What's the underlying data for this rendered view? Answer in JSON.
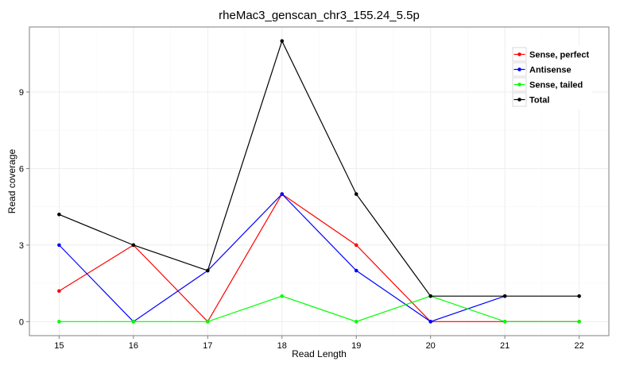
{
  "chart_data": {
    "type": "line",
    "title": "rheMac3_genscan_chr3_155.24_5.5p",
    "xlabel": "Read Length",
    "ylabel": "Read coverage",
    "x": [
      15,
      16,
      17,
      18,
      19,
      20,
      21,
      22
    ],
    "xlim": [
      14.6,
      22.4
    ],
    "ylim": [
      -0.55,
      11.55
    ],
    "yticks": [
      0,
      3,
      6,
      9
    ],
    "grid": true,
    "legend_position": "top-right",
    "series": [
      {
        "name": "Sense, perfect",
        "color": "#ff0000",
        "values": [
          1.2,
          3,
          0,
          5,
          3,
          0,
          0,
          0
        ]
      },
      {
        "name": "Antisense",
        "color": "#0000ff",
        "values": [
          3,
          0,
          2,
          5,
          2,
          0,
          1,
          null
        ]
      },
      {
        "name": "Sense, tailed",
        "color": "#00ff00",
        "values": [
          0,
          0,
          0,
          1,
          0,
          1,
          0,
          0
        ]
      },
      {
        "name": "Total",
        "color": "#000000",
        "values": [
          4.2,
          3,
          2,
          11,
          5,
          1,
          1,
          1
        ]
      }
    ]
  }
}
